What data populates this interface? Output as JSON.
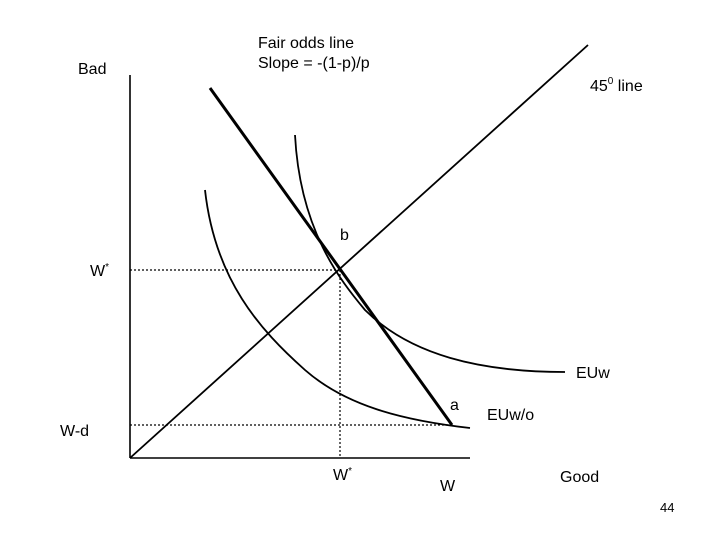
{
  "labels": {
    "y_axis": "Bad",
    "x_axis": "Good",
    "fair_odds_line": "Fair odds line",
    "fair_odds_slope": "Slope = -(1-p)/p",
    "line_45_number": "45",
    "line_45_degree": "0",
    "line_45_text": " line",
    "point_b": "b",
    "point_a": "a",
    "curve_with_insurance": "EUw",
    "curve_without_insurance": "EUw/o",
    "y_tick_wstar": "W",
    "y_tick_wstar_mark": "*",
    "y_tick_wd": "W-d",
    "x_tick_wstar": "W",
    "x_tick_wstar_mark": "*",
    "x_tick_w": "W"
  },
  "page_number": "44",
  "colors": {
    "line": "#000000",
    "background": "#ffffff"
  }
}
